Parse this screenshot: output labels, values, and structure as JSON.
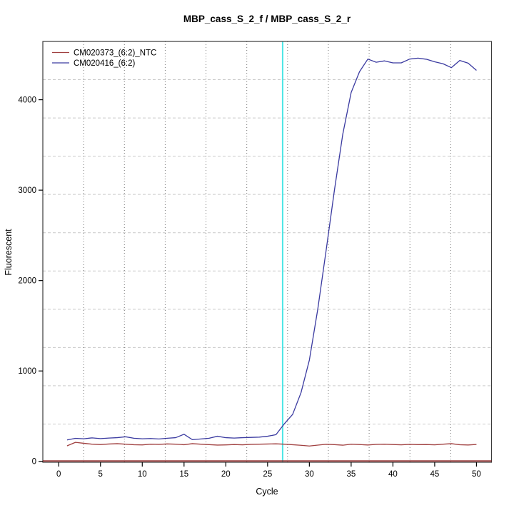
{
  "chart_data": {
    "type": "line",
    "title": "MBP_cass_S_2_f / MBP_cass_S_2_r",
    "xlabel": "Cycle",
    "ylabel": "Fluorescent",
    "x_ticks": [
      0,
      5,
      10,
      15,
      20,
      25,
      30,
      35,
      40,
      45,
      50
    ],
    "y_ticks": [
      0,
      1000,
      2000,
      3000,
      4000
    ],
    "xlim": [
      -1.9,
      51.8
    ],
    "ylim": [
      -10,
      4645
    ],
    "grid": {
      "divisions_x": 11,
      "divisions_y": 11,
      "vertical_style": "dotted",
      "horizontal_style": "dashed",
      "vertical_color": "#777777",
      "horizontal_color": "#c9c9c9"
    },
    "threshold_line": {
      "x": 26.8,
      "color": "#4ce6e6"
    },
    "zero_line": {
      "y": 0,
      "color": "#8b1a1a"
    },
    "x_start_cycle": 1,
    "legend_position": "top-left",
    "series": [
      {
        "name": "CM020373_(6:2)_NTC",
        "color": "#a04040",
        "values": [
          172,
          210,
          200,
          190,
          186,
          192,
          196,
          190,
          184,
          182,
          190,
          188,
          193,
          190,
          184,
          196,
          190,
          185,
          180,
          182,
          186,
          183,
          188,
          190,
          192,
          194,
          190,
          184,
          178,
          170,
          180,
          189,
          185,
          179,
          190,
          186,
          181,
          188,
          190,
          186,
          183,
          188,
          185,
          186,
          183,
          190,
          196,
          184,
          181,
          187
        ]
      },
      {
        "name": "CM020416_(6:2)",
        "color": "#3a3aa0",
        "values": [
          237,
          255,
          250,
          260,
          252,
          258,
          262,
          272,
          256,
          250,
          253,
          248,
          256,
          262,
          300,
          240,
          248,
          256,
          278,
          262,
          258,
          262,
          265,
          268,
          278,
          295,
          415,
          520,
          760,
          1120,
          1680,
          2330,
          3000,
          3620,
          4080,
          4310,
          4450,
          4415,
          4430,
          4408,
          4408,
          4450,
          4460,
          4448,
          4420,
          4398,
          4355,
          4435,
          4405,
          4325
        ]
      }
    ]
  }
}
